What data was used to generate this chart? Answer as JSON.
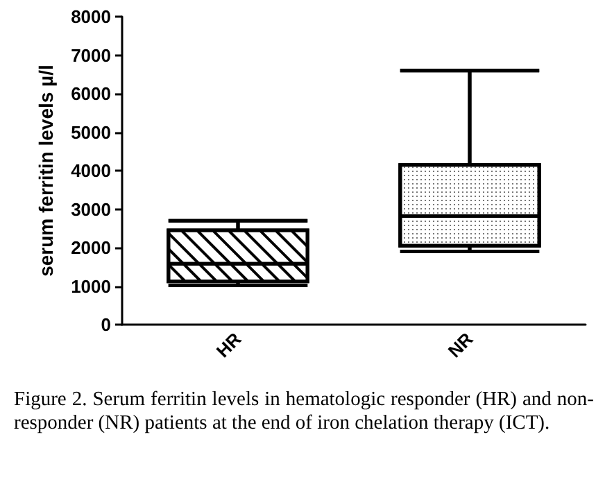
{
  "chart_data": {
    "type": "box",
    "ylabel": "serum ferritin levels µ/l",
    "categories": [
      "HR",
      "NR"
    ],
    "boxes": [
      {
        "low": 1020,
        "q1": 1120,
        "median": 1580,
        "q3": 2450,
        "high": 2700
      },
      {
        "low": 1900,
        "q1": 2050,
        "median": 2820,
        "q3": 4150,
        "high": 6600
      }
    ],
    "color": "#000000",
    "ylim": [
      0,
      8000
    ],
    "yticks": [
      0,
      1000,
      2000,
      3000,
      4000,
      5000,
      6000,
      7000,
      8000
    ],
    "grid": false,
    "annotations": [
      "Figure 2. Serum ferritin levels in hematologic responder (HR) and non-responder (NR) patients at the end of iron chelation therapy (ICT)."
    ]
  }
}
